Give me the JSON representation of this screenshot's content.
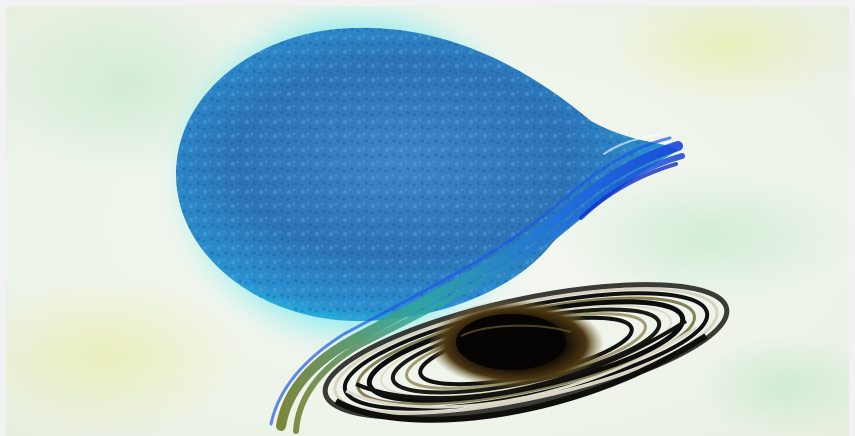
{
  "image": {
    "subject": "blue-star-and-black-hole-accretion-disk",
    "colors": {
      "background": "#eef4ee",
      "star_core": "#2b6fb3",
      "star_glow": "#22d6e6",
      "stream": "#1e5be8",
      "disk_dark": "#111111",
      "disk_light": "#d9d4c6",
      "disk_olive": "#7f7a3a"
    },
    "icons": [
      "star-shape",
      "black-hole-shape",
      "accretion-disk-shape",
      "matter-stream-shape"
    ]
  }
}
